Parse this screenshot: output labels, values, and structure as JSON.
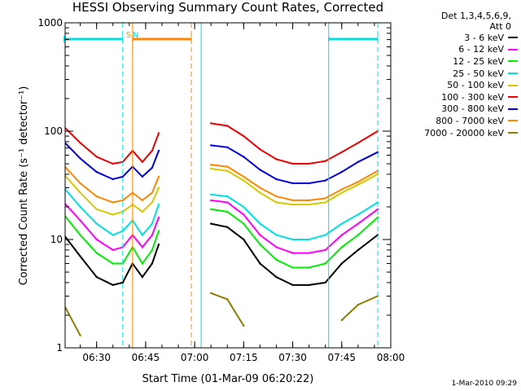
{
  "title": "HESSI Observing Summary Count Rates, Corrected",
  "legend": {
    "header_line1": "Det 1,3,4,5,6,9,",
    "header_line2": "Att 0",
    "position": "right-outside",
    "entries": [
      {
        "label": "3 - 6 keV",
        "color": "#000000"
      },
      {
        "label": "6 - 12 keV",
        "color": "#ff00ff"
      },
      {
        "label": "12 - 25 keV",
        "color": "#00ee00"
      },
      {
        "label": "25 - 50 keV",
        "color": "#00e0e0"
      },
      {
        "label": "50 - 100 keV",
        "color": "#d8c800"
      },
      {
        "label": "100 - 300 keV",
        "color": "#ee0000"
      },
      {
        "label": "300 - 800 keV",
        "color": "#0000dd"
      },
      {
        "label": "800 - 7000 keV",
        "color": "#ff8800"
      },
      {
        "label": "7000 - 20000 keV",
        "color": "#8b7d00"
      }
    ]
  },
  "footer": "1-Mar-2010 09:29",
  "chart_data": {
    "type": "line",
    "xlabel": "Start Time (01-Mar-09 06:20:22)",
    "ylabel": "Corrected Count Rate (s⁻¹ detector⁻¹)",
    "ylim": [
      1,
      1000
    ],
    "yscale": "log",
    "xlim": [
      "06:20:22",
      "08:00:00"
    ],
    "xticks": [
      "06:30",
      "06:45",
      "07:00",
      "07:15",
      "07:30",
      "07:45",
      "08:00"
    ],
    "yticks": [
      "1",
      "10",
      "100",
      "1000"
    ],
    "grid": false,
    "x": [
      "06:20",
      "06:25",
      "06:30",
      "06:35",
      "06:38",
      "06:41",
      "06:44",
      "06:47",
      "06:49",
      "07:02",
      "07:05",
      "07:10",
      "07:15",
      "07:20",
      "07:25",
      "07:30",
      "07:35",
      "07:40",
      "07:45",
      "07:50",
      "07:56"
    ],
    "series": [
      {
        "name": "3 - 6 keV",
        "color": "#000000",
        "values": [
          11,
          7,
          4.5,
          3.8,
          4,
          6,
          4.5,
          6,
          9,
          null,
          14,
          13,
          10,
          6,
          4.5,
          3.8,
          3.8,
          4,
          6,
          8,
          11
        ]
      },
      {
        "name": "6 - 12 keV",
        "color": "#ff00ff",
        "values": [
          22,
          15,
          10,
          8,
          8.5,
          11,
          8.5,
          11,
          16,
          null,
          23,
          22,
          17,
          11,
          8.5,
          7.5,
          7.5,
          8,
          11,
          14,
          19
        ]
      },
      {
        "name": "12 - 25 keV",
        "color": "#00ee00",
        "values": [
          17,
          11,
          7.5,
          6,
          6,
          8.5,
          6,
          8,
          12,
          null,
          19,
          18,
          14,
          9,
          6.5,
          5.5,
          5.5,
          6,
          8.5,
          11,
          16
        ]
      },
      {
        "name": "25 - 50 keV",
        "color": "#00e0e0",
        "values": [
          30,
          20,
          14,
          11,
          12,
          15,
          11,
          14,
          21,
          null,
          26,
          25,
          20,
          14,
          11,
          10,
          10,
          11,
          14,
          17,
          22
        ]
      },
      {
        "name": "50 - 100 keV",
        "color": "#d8c800",
        "values": [
          40,
          27,
          19,
          17,
          18,
          21,
          18,
          22,
          30,
          null,
          45,
          43,
          35,
          27,
          22,
          21,
          21,
          22,
          27,
          32,
          40
        ]
      },
      {
        "name": "100 - 300 keV",
        "color": "#ee0000",
        "values": [
          110,
          78,
          58,
          50,
          52,
          66,
          52,
          66,
          96,
          null,
          118,
          112,
          90,
          68,
          55,
          50,
          50,
          53,
          64,
          78,
          100
        ]
      },
      {
        "name": "300 - 800 keV",
        "color": "#0000dd",
        "values": [
          80,
          56,
          42,
          36,
          38,
          47,
          38,
          46,
          66,
          null,
          74,
          71,
          58,
          44,
          36,
          33,
          33,
          35,
          42,
          52,
          64
        ]
      },
      {
        "name": "800 - 7000 keV",
        "color": "#ff8800",
        "values": [
          48,
          33,
          25,
          22,
          23,
          27,
          23,
          27,
          38,
          null,
          49,
          47,
          38,
          30,
          25,
          23,
          23,
          24,
          29,
          34,
          43
        ]
      },
      {
        "name": "7000 - 20000 keV",
        "color": "#8b7d00",
        "values": [
          2.5,
          1.3,
          null,
          null,
          null,
          null,
          null,
          null,
          null,
          null,
          3.2,
          2.8,
          1.6,
          null,
          null,
          null,
          null,
          null,
          1.8,
          2.5,
          3.0
        ]
      }
    ],
    "vertical_lines": [
      {
        "time": "06:38",
        "color": "#00e0e0",
        "style": "dashed"
      },
      {
        "time": "06:41",
        "color": "#ff8800",
        "style": "solid"
      },
      {
        "time": "06:59",
        "color": "#ff8800",
        "style": "dashed"
      },
      {
        "time": "07:02",
        "color": "#00e0e0",
        "style": "solid"
      },
      {
        "time": "07:41",
        "color": "#00e0e0",
        "style": "solid"
      },
      {
        "time": "07:56",
        "color": "#00e0e0",
        "style": "dashed"
      }
    ],
    "annotations": [
      {
        "text": "S",
        "color": "#ff8800",
        "time": "06:38"
      },
      {
        "text": "N",
        "color": "#00e0e0",
        "time": "06:40"
      }
    ],
    "top_bars": [
      {
        "from": "06:20",
        "to": "06:38",
        "color": "#00e0e0"
      },
      {
        "from": "06:41",
        "to": "06:59",
        "color": "#ff8800"
      },
      {
        "from": "07:41",
        "to": "07:56",
        "color": "#00e0e0"
      }
    ]
  }
}
